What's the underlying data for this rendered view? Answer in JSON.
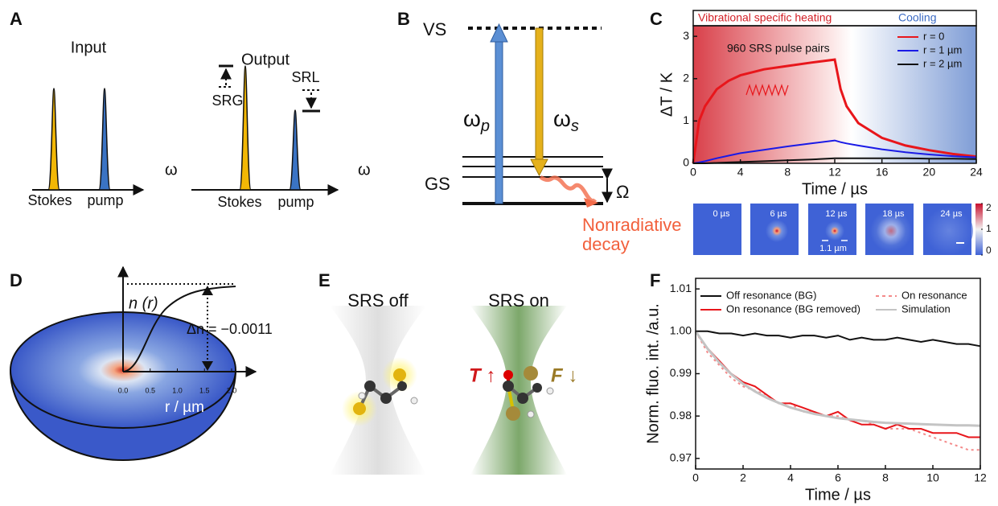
{
  "panel_labels": [
    "A",
    "B",
    "C",
    "D",
    "E",
    "F"
  ],
  "panel_a": {
    "input": {
      "title": "Input",
      "x_label": "ω",
      "peaks": [
        "Stokes",
        "pump"
      ]
    },
    "output": {
      "title": "Output",
      "x_label": "ω",
      "peaks": [
        "Stokes",
        "pump"
      ],
      "gain": "SRG",
      "loss": "SRL"
    }
  },
  "panel_b": {
    "upper_level": "VS",
    "ground_level": "GS",
    "pump": "ω",
    "pump_sub": "p",
    "stokes": "ω",
    "stokes_sub": "s",
    "vibration": "Ω",
    "decay": [
      "Nonradiative",
      "decay"
    ]
  },
  "panel_c_images": {
    "times": [
      "0 µs",
      "6 µs",
      "12 µs",
      "18 µs",
      "24 µs"
    ],
    "scale_label": "1.1 µm",
    "colorbar_ticks": [
      0,
      1,
      2
    ]
  },
  "panel_d": {
    "y_label": "n (r)",
    "x_label": "r / µm",
    "annotation": "Δn = −0.0011",
    "xticks": [
      {
        "value": 0,
        "label": "0.0"
      },
      0.5,
      {
        "value": 1,
        "label": "1.0"
      },
      1.5,
      {
        "value": 2,
        "label": "2.0"
      }
    ]
  },
  "panel_e": {
    "off": "SRS off",
    "on": "SRS on",
    "temperature": "T ↑",
    "fluorescence": "F ↓"
  },
  "chart_data": [
    {
      "type": "line",
      "header": [
        "Vibrational specific heating",
        "Cooling"
      ],
      "annotation": "960 SRS pulse pairs",
      "x_label": "Time / µs",
      "y_label": "ΔT / K",
      "x": [
        0,
        0.5,
        1,
        2,
        3,
        4,
        6,
        8,
        10,
        12,
        12.5,
        13,
        14,
        16,
        18,
        20,
        22,
        24
      ],
      "series": [
        {
          "name": "r = 0",
          "color": "#e8161b",
          "values": [
            0,
            1.0,
            1.35,
            1.75,
            1.95,
            2.08,
            2.22,
            2.3,
            2.38,
            2.45,
            1.75,
            1.35,
            0.95,
            0.6,
            0.42,
            0.31,
            0.22,
            0.16
          ]
        },
        {
          "name": "r = 1 µm",
          "color": "#1a1ae6",
          "values": [
            0,
            0.02,
            0.05,
            0.12,
            0.18,
            0.24,
            0.32,
            0.4,
            0.47,
            0.54,
            0.5,
            0.47,
            0.42,
            0.33,
            0.26,
            0.21,
            0.17,
            0.14
          ]
        },
        {
          "name": "r = 2 µm",
          "color": "#111111",
          "values": [
            0,
            0,
            0,
            0.01,
            0.02,
            0.03,
            0.05,
            0.07,
            0.09,
            0.12,
            0.12,
            0.12,
            0.12,
            0.12,
            0.12,
            0.11,
            0.11,
            0.1
          ]
        }
      ],
      "xlim": [
        0,
        24
      ],
      "xticks": [
        0,
        4,
        8,
        12,
        16,
        20,
        24
      ],
      "ylim": [
        0,
        3.25
      ],
      "yticks": [
        0,
        1,
        2,
        3
      ],
      "legend": "upper right"
    },
    {
      "type": "line",
      "x_label": "Time / µs",
      "y_label": "Norm. fluo. int. /a.u.",
      "x": [
        0,
        0.5,
        1,
        1.5,
        2,
        2.5,
        3,
        3.5,
        4,
        4.5,
        5,
        5.5,
        6,
        6.5,
        7,
        7.5,
        8,
        8.5,
        9,
        9.5,
        10,
        10.5,
        11,
        11.5,
        12
      ],
      "series": [
        {
          "name": "Off resonance (BG)",
          "color": "#111111",
          "values": [
            1.0,
            1.0,
            0.9995,
            0.9995,
            0.999,
            0.9995,
            0.999,
            0.999,
            0.9985,
            0.999,
            0.999,
            0.9985,
            0.999,
            0.998,
            0.9985,
            0.998,
            0.998,
            0.9985,
            0.998,
            0.9975,
            0.998,
            0.9975,
            0.997,
            0.997,
            0.9965
          ]
        },
        {
          "name": "On resonance",
          "color": "#f48a8a",
          "linestyle": "dotted",
          "values": [
            1.0,
            0.995,
            0.992,
            0.989,
            0.987,
            0.986,
            0.985,
            0.983,
            0.983,
            0.981,
            0.981,
            0.98,
            0.98,
            0.979,
            0.979,
            0.978,
            0.977,
            0.977,
            0.977,
            0.976,
            0.975,
            0.974,
            0.973,
            0.972,
            0.972
          ]
        },
        {
          "name": "On resonance (BG removed)",
          "color": "#e8161b",
          "values": [
            1.0,
            0.996,
            0.993,
            0.99,
            0.988,
            0.987,
            0.985,
            0.983,
            0.983,
            0.982,
            0.981,
            0.98,
            0.981,
            0.979,
            0.978,
            0.978,
            0.977,
            0.978,
            0.977,
            0.977,
            0.976,
            0.976,
            0.976,
            0.975,
            0.975
          ]
        },
        {
          "name": "Simulation",
          "color": "#c4c4c4",
          "values": [
            1.0,
            0.9959,
            0.9926,
            0.9899,
            0.9876,
            0.9858,
            0.9843,
            0.9831,
            0.982,
            0.9812,
            0.9805,
            0.98,
            0.9795,
            0.9792,
            0.9789,
            0.9786,
            0.9784,
            0.9783,
            0.9782,
            0.9781,
            0.978,
            0.9779,
            0.9778,
            0.9778,
            0.9777
          ]
        }
      ],
      "xlim": [
        0,
        12
      ],
      "xticks": [
        0,
        2,
        4,
        6,
        8,
        10,
        12
      ],
      "ylim": [
        0.9675,
        1.0125
      ],
      "yticks": [
        0.97,
        0.98,
        0.99,
        {
          "value": 1,
          "label": "1.00"
        },
        1.01
      ],
      "legend": "upper center"
    }
  ]
}
